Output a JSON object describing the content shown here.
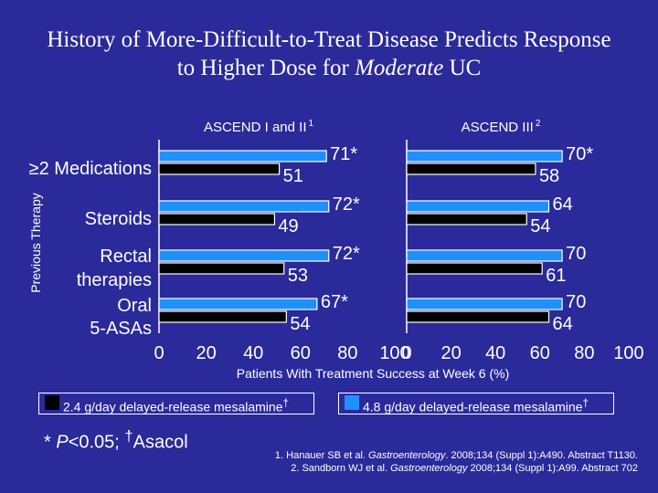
{
  "title_line1": "History of More-Difficult-to-Treat Disease Predicts Response",
  "title_line2_prefix": "to Higher Dose for ",
  "title_line2_italic": "Moderate",
  "title_line2_suffix": " UC",
  "colors": {
    "background": "#2a2a9a",
    "low_dose": "#000000",
    "high_dose": "#1e90ff",
    "outline": "#ffffff"
  },
  "chart_data": [
    {
      "type": "bar",
      "orientation": "horizontal",
      "title": "ASCEND I and II",
      "title_sup": "1",
      "ylabel": "Previous Therapy",
      "xlabel": "Patients With Treatment Success at Week 6 (%)",
      "xlim": [
        0,
        100
      ],
      "xticks": [
        "0",
        "20",
        "40",
        "60",
        "80",
        "100"
      ],
      "categories": [
        "≥2 Medications",
        "Steroids",
        "Rectal therapies",
        "Oral 5-ASAs"
      ],
      "series": [
        {
          "name": "2.4 g/day delayed-release mesalamine",
          "values": [
            51,
            49,
            53,
            54
          ],
          "labels": [
            "51",
            "49",
            "53",
            "54"
          ]
        },
        {
          "name": "4.8 g/day delayed-release mesalamine",
          "values": [
            71,
            72,
            72,
            67
          ],
          "labels": [
            "71*",
            "72*",
            "72*",
            "67*"
          ]
        }
      ]
    },
    {
      "type": "bar",
      "orientation": "horizontal",
      "title": "ASCEND III",
      "title_sup": "2",
      "xlim": [
        0,
        100
      ],
      "xticks": [
        "0",
        "20",
        "40",
        "60",
        "80",
        "100"
      ],
      "categories": [
        "≥2 Medications",
        "Steroids",
        "Rectal therapies",
        "Oral 5-ASAs"
      ],
      "series": [
        {
          "name": "2.4 g/day delayed-release mesalamine",
          "values": [
            58,
            54,
            61,
            64
          ],
          "labels": [
            "58",
            "54",
            "61",
            "64"
          ]
        },
        {
          "name": "4.8 g/day delayed-release mesalamine",
          "values": [
            70,
            64,
            70,
            70
          ],
          "labels": [
            "70*",
            "64",
            "70",
            "70"
          ]
        }
      ]
    }
  ],
  "legend": {
    "low_label": "2.4 g/day delayed-release mesalamine",
    "high_label": "4.8 g/day delayed-release mesalamine",
    "dagger": "†"
  },
  "footnote": {
    "star_p": "* ",
    "p_italic": "P",
    "p_rest": "<0.05; ",
    "dagger": "†",
    "asacol": "Asacol"
  },
  "references": {
    "ref1_pre": "1. Hanauer SB et al. ",
    "ref1_journal": "Gastroenterology",
    "ref1_post": ". 2008;134 (Suppl 1):A490. Abstract T1130.",
    "ref2_pre": "2. Sandborn WJ et al. ",
    "ref2_journal": "Gastroenterology",
    "ref2_post": " 2008;134 (Suppl 1):A99. Abstract 702"
  }
}
